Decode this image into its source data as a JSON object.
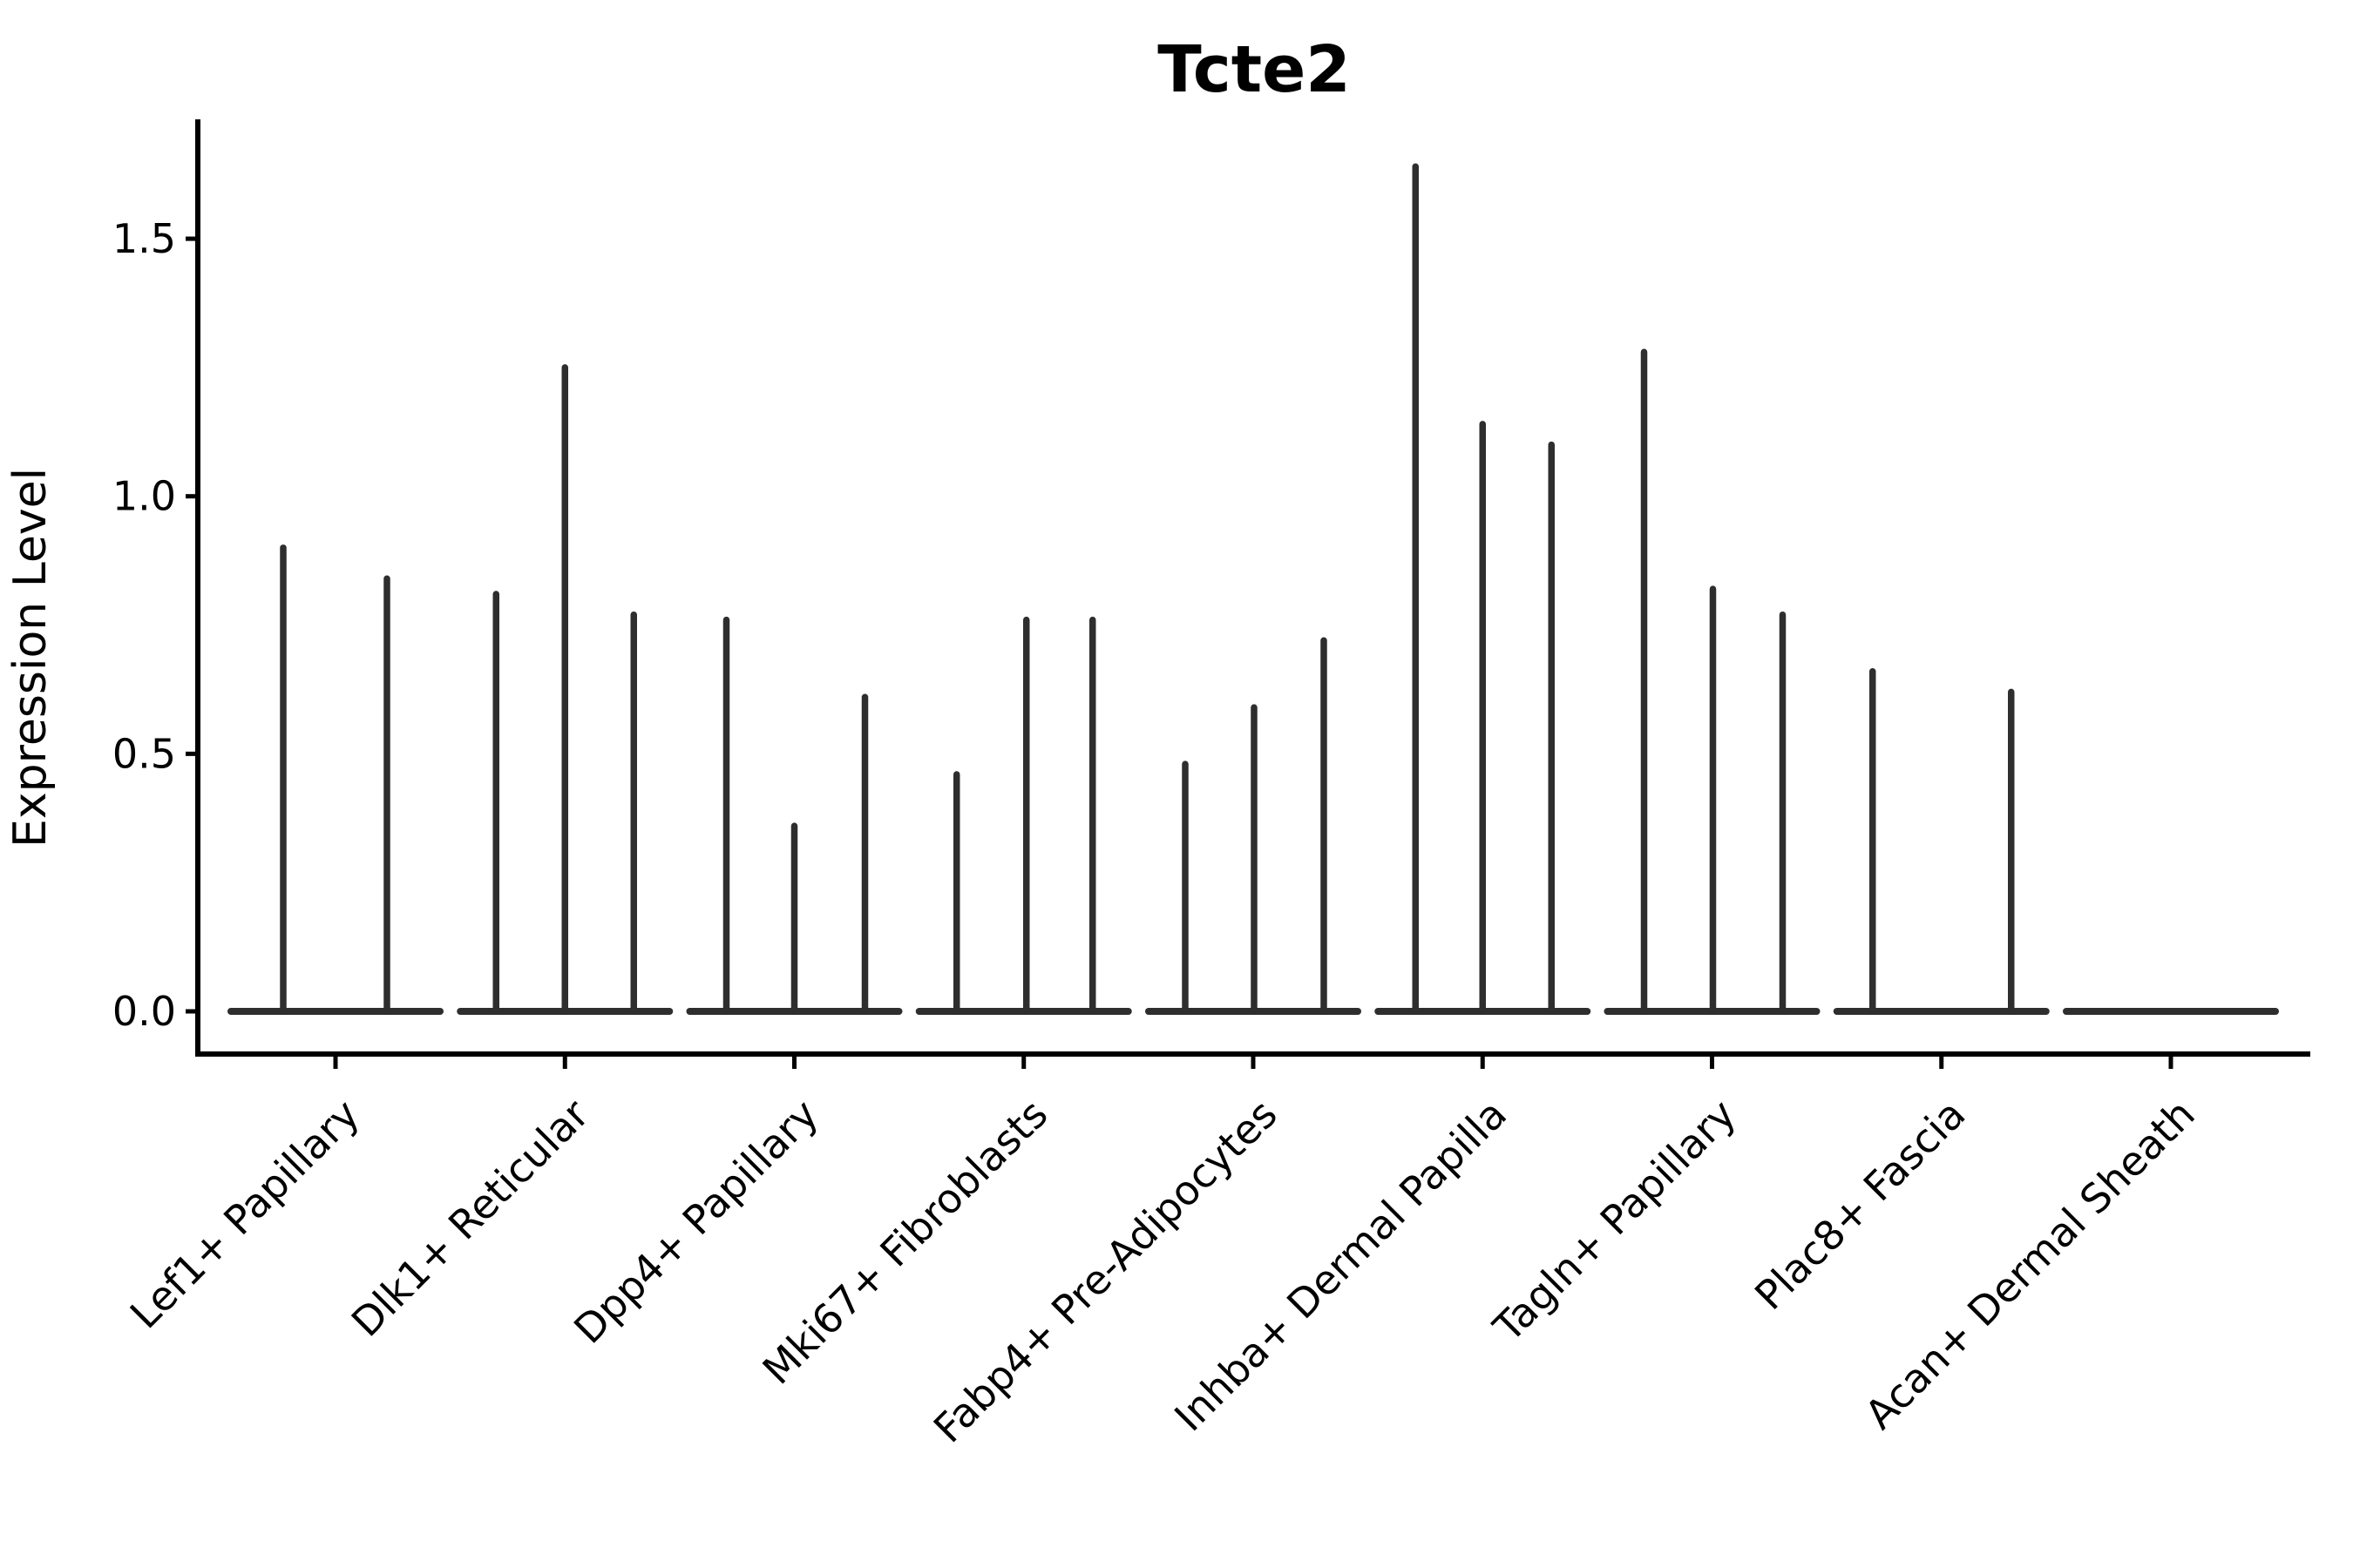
{
  "title": "Tcte2",
  "axes": {
    "ylabel": "Expression Level",
    "xlabel": "",
    "ytick_labels": [
      "0.0",
      "0.5",
      "1.0",
      "1.5"
    ]
  },
  "colors": {
    "background": "#ffffff",
    "axis": "#000000",
    "text": "#000000",
    "violin": "#2e2e2e"
  },
  "chart_data": {
    "type": "violin",
    "title": "Tcte2",
    "xlabel": "",
    "ylabel": "Expression Level",
    "ylim": [
      0,
      1.73
    ],
    "yticks": [
      0.0,
      0.5,
      1.0,
      1.5
    ],
    "ytick_labels": [
      "0.0",
      "0.5",
      "1.0",
      "1.5"
    ],
    "grid": false,
    "legend": false,
    "baseline_value": 0.0,
    "categories": [
      "Lef1+ Papillary",
      "Dlk1+ Reticular",
      "Dpp4+ Papillary",
      "Mki67+ Fibroblasts",
      "Fabp4+ Pre-Adipocytes",
      "Inhba+ Dermal Papilla",
      "Tagln+ Papillary",
      "Plac8+ Fascia",
      "Acan+ Dermal Sheath"
    ],
    "series": [
      {
        "category": "Lef1+ Papillary",
        "spikes": [
          {
            "offset": -60,
            "value": 0.9
          },
          {
            "offset": 59,
            "value": 0.84
          }
        ]
      },
      {
        "category": "Dlk1+ Reticular",
        "spikes": [
          {
            "offset": -79,
            "value": 0.81
          },
          {
            "offset": 0,
            "value": 1.25
          },
          {
            "offset": 79,
            "value": 0.77
          }
        ]
      },
      {
        "category": "Dpp4+ Papillary",
        "spikes": [
          {
            "offset": -78,
            "value": 0.76
          },
          {
            "offset": 0,
            "value": 0.36
          },
          {
            "offset": 81,
            "value": 0.61
          }
        ]
      },
      {
        "category": "Mki67+ Fibroblasts",
        "spikes": [
          {
            "offset": -77,
            "value": 0.46
          },
          {
            "offset": 3,
            "value": 0.76
          },
          {
            "offset": 79,
            "value": 0.76
          }
        ]
      },
      {
        "category": "Fabp4+ Pre-Adipocytes",
        "spikes": [
          {
            "offset": -78,
            "value": 0.48
          },
          {
            "offset": 1,
            "value": 0.59
          },
          {
            "offset": 81,
            "value": 0.72
          }
        ]
      },
      {
        "category": "Inhba+ Dermal Papilla",
        "spikes": [
          {
            "offset": -77,
            "value": 1.64
          },
          {
            "offset": 0,
            "value": 1.14
          },
          {
            "offset": 79,
            "value": 1.1
          }
        ]
      },
      {
        "category": "Tagln+ Papillary",
        "spikes": [
          {
            "offset": -78,
            "value": 1.28
          },
          {
            "offset": 1,
            "value": 0.82
          },
          {
            "offset": 81,
            "value": 0.77
          }
        ]
      },
      {
        "category": "Plac8+ Fascia",
        "spikes": [
          {
            "offset": -79,
            "value": 0.66
          },
          {
            "offset": 80,
            "value": 0.62
          }
        ]
      },
      {
        "category": "Acan+ Dermal Sheath",
        "spikes": []
      }
    ]
  }
}
